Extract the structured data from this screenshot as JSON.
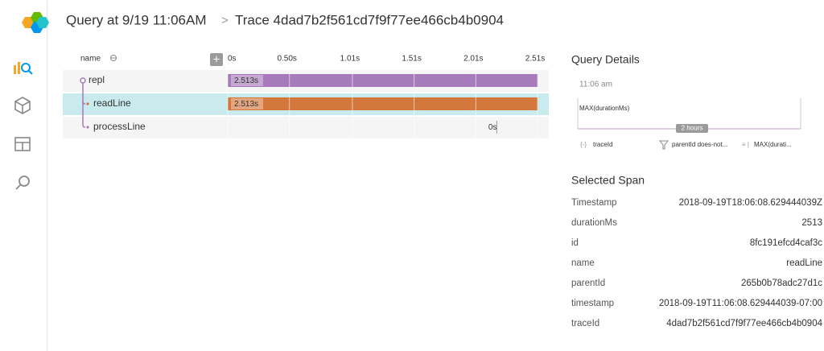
{
  "header": {
    "query": "Query at 9/19 11:06AM",
    "separator": ">",
    "trace": "Trace 4dad7b2f561cd7f9f77ee466cb4b0904"
  },
  "trace_table": {
    "name_header": "name",
    "add_button": "+",
    "axis_ticks": [
      {
        "value": 0,
        "label": "0s"
      },
      {
        "value": 0.5,
        "label": "0.50s"
      },
      {
        "value": 1.01,
        "label": "1.01s"
      },
      {
        "value": 1.51,
        "label": "1.51s"
      },
      {
        "value": 2.01,
        "label": "2.01s"
      },
      {
        "value": 2.51,
        "label": "2.51s"
      }
    ],
    "spans": [
      {
        "name": "repl",
        "start": 0,
        "duration": 2.513,
        "duration_label": "2.513s",
        "color": "#a77bbb",
        "depth": 0
      },
      {
        "name": "readLine",
        "start": 0,
        "duration": 2.513,
        "duration_label": "2.513s",
        "color": "#d4773a",
        "depth": 1
      },
      {
        "name": "processLine",
        "start": 2.18,
        "duration": 0,
        "duration_label": "0s",
        "color": "#9b9b9b",
        "depth": 1
      }
    ],
    "selected_index": 1
  },
  "query_details": {
    "title": "Query Details",
    "time": "11:06 am",
    "metric": "MAX(durationMs)",
    "range": "2 hours",
    "group_by": "traceId",
    "filter": "parentId does-not...",
    "calculation": "MAX(durati..."
  },
  "selected_span": {
    "title": "Selected Span",
    "fields": [
      [
        "Timestamp",
        "2018-09-19T18:06:08.629444039Z"
      ],
      [
        "durationMs",
        "2513"
      ],
      [
        "id",
        "8fc191efcd4caf3c"
      ],
      [
        "name",
        "readLine"
      ],
      [
        "parentId",
        "265b0b78adc27d1c"
      ],
      [
        "timestamp",
        "2018-09-19T11:06:08.629444039-07:00"
      ],
      [
        "traceId",
        "4dad7b2f561cd7f9f77ee466cb4b0904"
      ]
    ]
  }
}
